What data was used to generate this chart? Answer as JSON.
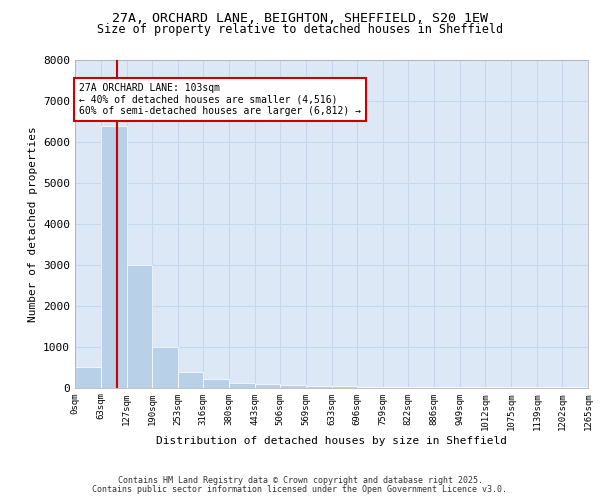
{
  "title_line1": "27A, ORCHARD LANE, BEIGHTON, SHEFFIELD, S20 1EW",
  "title_line2": "Size of property relative to detached houses in Sheffield",
  "xlabel": "Distribution of detached houses by size in Sheffield",
  "ylabel": "Number of detached properties",
  "bar_values": [
    490,
    6400,
    3000,
    1000,
    390,
    200,
    120,
    80,
    55,
    40,
    30,
    22,
    15,
    12,
    9,
    7,
    5,
    4,
    3,
    2
  ],
  "bin_edges": [
    0,
    63,
    127,
    190,
    253,
    316,
    380,
    443,
    506,
    569,
    633,
    696,
    759,
    822,
    886,
    949,
    1012,
    1075,
    1139,
    1202,
    1265
  ],
  "bar_color": "#b8d0e8",
  "bar_edge_color": "#ffffff",
  "grid_color": "#c8d8ec",
  "background_color": "#dce8f5",
  "figure_bg": "#ffffff",
  "vline_x": 103,
  "vline_color": "#cc0000",
  "annotation_text": "27A ORCHARD LANE: 103sqm\n← 40% of detached houses are smaller (4,516)\n60% of semi-detached houses are larger (6,812) →",
  "annotation_box_facecolor": "#ffffff",
  "annotation_box_edgecolor": "#cc0000",
  "yticks": [
    0,
    1000,
    2000,
    3000,
    4000,
    5000,
    6000,
    7000,
    8000
  ],
  "ylim": [
    0,
    8000
  ],
  "footer_line1": "Contains HM Land Registry data © Crown copyright and database right 2025.",
  "footer_line2": "Contains public sector information licensed under the Open Government Licence v3.0.",
  "tick_labels": [
    "0sqm",
    "63sqm",
    "127sqm",
    "190sqm",
    "253sqm",
    "316sqm",
    "380sqm",
    "443sqm",
    "506sqm",
    "569sqm",
    "633sqm",
    "696sqm",
    "759sqm",
    "822sqm",
    "886sqm",
    "949sqm",
    "1012sqm",
    "1075sqm",
    "1139sqm",
    "1202sqm",
    "1265sqm"
  ]
}
